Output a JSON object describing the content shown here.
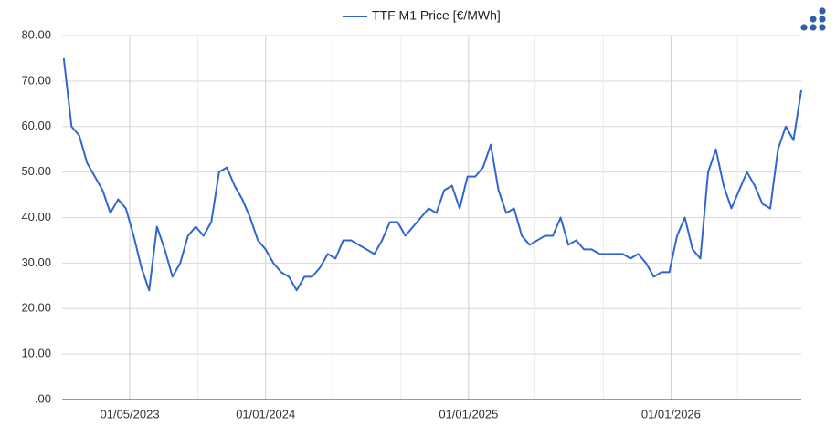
{
  "chart_data": {
    "type": "line",
    "legend_position": "top",
    "grid": true,
    "x": [
      "2023-01-02",
      "2023-01-16",
      "2023-01-30",
      "2023-02-13",
      "2023-02-27",
      "2023-03-13",
      "2023-03-27",
      "2023-04-10",
      "2023-04-24",
      "2023-05-08",
      "2023-05-22",
      "2023-06-05",
      "2023-06-19",
      "2023-07-03",
      "2023-07-17",
      "2023-07-31",
      "2023-08-14",
      "2023-08-28",
      "2023-09-11",
      "2023-09-25",
      "2023-10-09",
      "2023-10-23",
      "2023-11-06",
      "2023-11-20",
      "2023-12-04",
      "2023-12-18",
      "2024-01-01",
      "2024-01-15",
      "2024-01-29",
      "2024-02-12",
      "2024-02-26",
      "2024-03-11",
      "2024-03-25",
      "2024-04-08",
      "2024-04-22",
      "2024-05-06",
      "2024-05-20",
      "2024-06-03",
      "2024-06-17",
      "2024-07-01",
      "2024-07-15",
      "2024-07-29",
      "2024-08-12",
      "2024-08-26",
      "2024-09-09",
      "2024-09-23",
      "2024-10-07",
      "2024-10-21",
      "2024-11-04",
      "2024-11-18",
      "2024-12-02",
      "2024-12-16",
      "2024-12-30",
      "2025-01-13",
      "2025-01-27",
      "2025-02-10",
      "2025-02-24",
      "2025-03-10",
      "2025-03-24",
      "2025-04-07",
      "2025-04-21",
      "2025-05-05",
      "2025-05-19",
      "2025-06-02",
      "2025-06-16",
      "2025-06-30",
      "2025-07-14",
      "2025-07-28",
      "2025-08-11",
      "2025-08-25",
      "2025-09-08",
      "2025-09-22",
      "2025-10-06",
      "2025-10-20",
      "2025-11-03",
      "2025-11-17",
      "2025-12-01",
      "2025-12-15",
      "2025-12-29",
      "2026-01-12",
      "2026-01-26",
      "2026-02-09",
      "2026-02-23",
      "2026-03-09",
      "2026-03-23",
      "2026-04-06",
      "2026-04-20",
      "2026-05-04",
      "2026-05-18",
      "2026-06-01",
      "2026-06-15",
      "2026-06-29",
      "2026-07-13",
      "2026-07-27",
      "2026-08-10",
      "2026-08-24"
    ],
    "series": [
      {
        "name": "TTF M1 Price [€/MWh]",
        "color": "#3366cc",
        "values": [
          75,
          60,
          58,
          52,
          49,
          46,
          41,
          44,
          42,
          36,
          29,
          24,
          38,
          33,
          27,
          30,
          36,
          38,
          36,
          39,
          50,
          51,
          47,
          44,
          40,
          35,
          33,
          30,
          28,
          27,
          24,
          27,
          27,
          29,
          32,
          31,
          35,
          35,
          34,
          33,
          32,
          35,
          39,
          39,
          36,
          38,
          40,
          42,
          41,
          46,
          47,
          42,
          49,
          49,
          51,
          56,
          46,
          41,
          42,
          36,
          34,
          35,
          36,
          36,
          40,
          34,
          35,
          33,
          33,
          32,
          32,
          32,
          32,
          31,
          32,
          30,
          27,
          28,
          28,
          36,
          40,
          33,
          31,
          50,
          55,
          47,
          42,
          46,
          50,
          47,
          43,
          42,
          55,
          60,
          57,
          68
        ]
      }
    ],
    "xlim": [
      "2022-12-30",
      "2026-08-24"
    ],
    "xticks": [
      {
        "value": "2023-05-01",
        "label": "01/05/2023"
      },
      {
        "value": "2024-01-01",
        "label": "01/01/2024"
      },
      {
        "value": "2025-01-01",
        "label": "01/01/2025"
      },
      {
        "value": "2026-01-01",
        "label": "01/01/2026"
      }
    ],
    "xgrid_minor": [
      "2023-09-01",
      "2024-05-01",
      "2024-09-01",
      "2025-05-01",
      "2025-09-01",
      "2026-05-01"
    ],
    "ylim": [
      0,
      80
    ],
    "yticks": [
      {
        "value": 0,
        "label": ".00"
      },
      {
        "value": 10,
        "label": "10.00"
      },
      {
        "value": 20,
        "label": "20.00"
      },
      {
        "value": 30,
        "label": "30.00"
      },
      {
        "value": 40,
        "label": "40.00"
      },
      {
        "value": 50,
        "label": "50.00"
      },
      {
        "value": 60,
        "label": "60.00"
      },
      {
        "value": 70,
        "label": "70.00"
      },
      {
        "value": 80,
        "label": "80.00"
      }
    ]
  }
}
